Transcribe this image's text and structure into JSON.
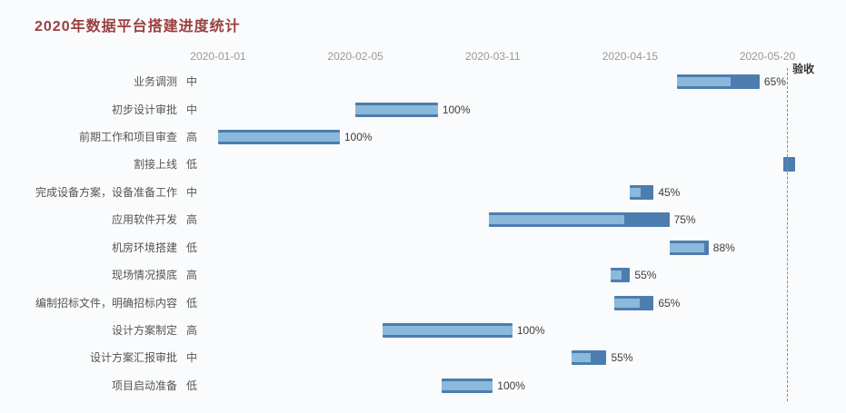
{
  "chart_data": {
    "type": "bar",
    "subtype": "gantt",
    "title": "2020年数据平台搭建进度统计",
    "x_axis": {
      "min": "2020-01-01",
      "max": "2020-06-03",
      "ticks": [
        "2020-01-01",
        "2020-02-05",
        "2020-03-11",
        "2020-04-15",
        "2020-05-20"
      ]
    },
    "marker_line": {
      "label": "验收",
      "date": "2020-05-25",
      "style": "dashed"
    },
    "tasks": [
      {
        "name": "业务调测",
        "priority": "中",
        "start": "2020-04-27",
        "end": "2020-05-18",
        "progress": 65,
        "progress_label": "65%"
      },
      {
        "name": "初步设计审批",
        "priority": "中",
        "start": "2020-02-05",
        "end": "2020-02-26",
        "progress": 100,
        "progress_label": "100%"
      },
      {
        "name": "前期工作和项目审查",
        "priority": "高",
        "start": "2020-01-01",
        "end": "2020-02-01",
        "progress": 100,
        "progress_label": "100%"
      },
      {
        "name": "割接上线",
        "priority": "低",
        "start": "2020-05-24",
        "end": "2020-05-27",
        "progress": 0,
        "progress_label": ""
      },
      {
        "name": "完成设备方案，设备准备工作",
        "priority": "中",
        "start": "2020-04-15",
        "end": "2020-04-21",
        "progress": 45,
        "progress_label": "45%"
      },
      {
        "name": "应用软件开发",
        "priority": "高",
        "start": "2020-03-10",
        "end": "2020-04-25",
        "progress": 75,
        "progress_label": "75%"
      },
      {
        "name": "机房环境搭建",
        "priority": "低",
        "start": "2020-04-25",
        "end": "2020-05-05",
        "progress": 88,
        "progress_label": "88%"
      },
      {
        "name": "现场情况摸底",
        "priority": "高",
        "start": "2020-04-10",
        "end": "2020-04-15",
        "progress": 55,
        "progress_label": "55%"
      },
      {
        "name": "编制招标文件，明确招标内容",
        "priority": "低",
        "start": "2020-04-11",
        "end": "2020-04-21",
        "progress": 65,
        "progress_label": "65%"
      },
      {
        "name": "设计方案制定",
        "priority": "高",
        "start": "2020-02-12",
        "end": "2020-03-16",
        "progress": 100,
        "progress_label": "100%"
      },
      {
        "name": "设计方案汇报审批",
        "priority": "中",
        "start": "2020-03-31",
        "end": "2020-04-09",
        "progress": 55,
        "progress_label": "55%"
      },
      {
        "name": "项目启动准备",
        "priority": "低",
        "start": "2020-02-27",
        "end": "2020-03-11",
        "progress": 100,
        "progress_label": "100%"
      }
    ],
    "colors": {
      "bar": "#4d7dae",
      "progress": "#8ab9dc",
      "title": "#993f3f",
      "axis_text": "#999999",
      "label_text": "#555555",
      "percent_text": "#3c3c3c",
      "marker_line": "#8a8a8a",
      "background": "#fafbfc"
    },
    "layout": {
      "legend": "none",
      "grid": "off"
    }
  }
}
